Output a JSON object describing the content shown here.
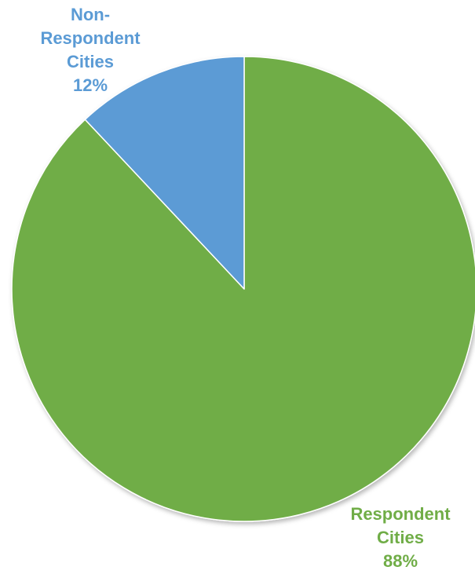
{
  "chart_data": {
    "type": "pie",
    "title": "",
    "start_angle_deg": 0,
    "direction": "clockwise",
    "slices": [
      {
        "label_lines": [
          "Respondent",
          "Cities"
        ],
        "value": 88,
        "value_text": "88%",
        "color": "#70AD47"
      },
      {
        "label_lines": [
          "Non-",
          "Respondent",
          "Cities"
        ],
        "value": 12,
        "value_text": "12%",
        "color": "#5B9BD5"
      }
    ],
    "legend": "none"
  }
}
